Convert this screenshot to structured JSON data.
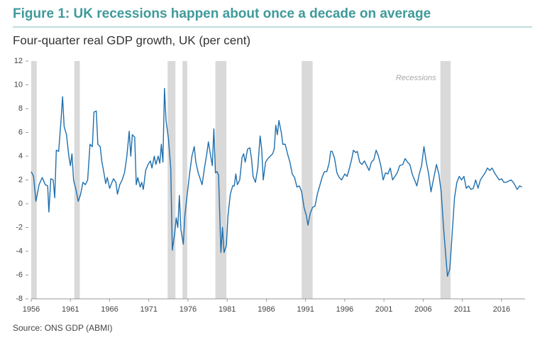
{
  "chart_data": {
    "type": "line",
    "title": "Figure 1: UK recessions happen about once a decade on average",
    "subtitle": "Four-quarter real GDP growth, UK (per cent)",
    "source": "Source: ONS GDP (ABMI)",
    "recession_label": "Recessions",
    "recessions": [
      [
        1956.0,
        1956.7
      ],
      [
        1961.5,
        1962.2
      ],
      [
        1973.4,
        1974.4
      ],
      [
        1975.3,
        1975.9
      ],
      [
        1979.5,
        1980.9
      ],
      [
        1990.5,
        1991.9
      ],
      [
        2008.2,
        2009.5
      ]
    ],
    "recession_color": "#d9d9d9",
    "xlim": [
      1956,
      2019
    ],
    "ylim": [
      -8,
      12
    ],
    "xticks": [
      1956,
      1961,
      1966,
      1971,
      1976,
      1981,
      1986,
      1991,
      1996,
      2001,
      2006,
      2011,
      2016
    ],
    "yticks": [
      -8,
      -6,
      -4,
      -2,
      0,
      2,
      4,
      6,
      8,
      10,
      12
    ],
    "color": "#1f6fae",
    "x": [
      1956.0,
      1956.3,
      1956.6,
      1957.0,
      1957.4,
      1957.8,
      1958.1,
      1958.25,
      1958.5,
      1958.8,
      1959.0,
      1959.2,
      1959.5,
      1959.8,
      1960.0,
      1960.2,
      1960.5,
      1960.8,
      1961.0,
      1961.2,
      1961.4,
      1961.7,
      1962.0,
      1962.3,
      1962.6,
      1962.9,
      1963.2,
      1963.5,
      1963.8,
      1964.0,
      1964.3,
      1964.5,
      1964.8,
      1965.0,
      1965.3,
      1965.5,
      1965.7,
      1966.0,
      1966.3,
      1966.5,
      1966.8,
      1967.0,
      1967.3,
      1967.6,
      1967.9,
      1968.2,
      1968.5,
      1968.7,
      1968.9,
      1969.2,
      1969.4,
      1969.6,
      1969.9,
      1970.1,
      1970.3,
      1970.6,
      1970.9,
      1971.2,
      1971.4,
      1971.7,
      1971.9,
      1972.2,
      1972.4,
      1972.6,
      1972.8,
      1973.0,
      1973.2,
      1973.5,
      1973.8,
      1974.0,
      1974.3,
      1974.5,
      1974.7,
      1974.9,
      1975.1,
      1975.4,
      1975.6,
      1975.9,
      1976.2,
      1976.5,
      1976.8,
      1977.0,
      1977.3,
      1977.6,
      1977.8,
      1978.1,
      1978.4,
      1978.6,
      1978.9,
      1979.1,
      1979.3,
      1979.5,
      1979.7,
      1979.9,
      1980.1,
      1980.2,
      1980.4,
      1980.6,
      1980.9,
      1981.1,
      1981.4,
      1981.7,
      1981.9,
      1982.1,
      1982.3,
      1982.6,
      1982.9,
      1983.1,
      1983.3,
      1983.6,
      1983.9,
      1984.1,
      1984.3,
      1984.6,
      1984.9,
      1985.2,
      1985.4,
      1985.6,
      1985.9,
      1986.2,
      1986.5,
      1986.8,
      1987.0,
      1987.2,
      1987.4,
      1987.6,
      1987.9,
      1988.1,
      1988.4,
      1988.7,
      1989.0,
      1989.3,
      1989.6,
      1989.9,
      1990.2,
      1990.5,
      1990.8,
      1991.1,
      1991.3,
      1991.6,
      1991.9,
      1992.2,
      1992.5,
      1992.8,
      1993.1,
      1993.4,
      1993.7,
      1994.0,
      1994.2,
      1994.4,
      1994.7,
      1995.0,
      1995.3,
      1995.6,
      1996.0,
      1996.3,
      1996.6,
      1996.9,
      1997.1,
      1997.4,
      1997.6,
      1997.9,
      1998.2,
      1998.5,
      1998.8,
      1999.1,
      1999.4,
      1999.7,
      2000.0,
      2000.3,
      2000.6,
      2000.9,
      2001.2,
      2001.5,
      2001.8,
      2002.1,
      2002.4,
      2002.7,
      2003.0,
      2003.4,
      2003.7,
      2004.0,
      2004.3,
      2004.6,
      2004.9,
      2005.2,
      2005.5,
      2005.8,
      2006.1,
      2006.4,
      2006.7,
      2007.0,
      2007.3,
      2007.7,
      2008.0,
      2008.3,
      2008.6,
      2008.9,
      2009.1,
      2009.4,
      2009.7,
      2010.0,
      2010.3,
      2010.6,
      2010.9,
      2011.2,
      2011.5,
      2011.8,
      2012.1,
      2012.4,
      2012.7,
      2013.0,
      2013.3,
      2013.6,
      2013.9,
      2014.2,
      2014.5,
      2014.8,
      2015.1,
      2015.4,
      2015.7,
      2016.0,
      2016.3,
      2016.6,
      2016.9,
      2017.2,
      2017.5,
      2018.0,
      2018.3,
      2018.6
    ],
    "values": [
      2.7,
      2.3,
      0.2,
      1.6,
      2.2,
      1.6,
      1.5,
      -0.7,
      2.1,
      2.0,
      0.5,
      4.5,
      4.4,
      7.0,
      9.0,
      6.5,
      5.8,
      4.0,
      3.2,
      4.2,
      2.0,
      1.2,
      0.2,
      0.8,
      1.8,
      1.6,
      2.0,
      5.0,
      4.8,
      7.7,
      7.8,
      5.0,
      4.8,
      3.6,
      2.5,
      1.7,
      2.2,
      1.3,
      1.8,
      2.1,
      1.8,
      0.8,
      1.6,
      2.0,
      2.6,
      4.0,
      6.1,
      4.0,
      5.8,
      5.6,
      1.6,
      2.2,
      1.4,
      1.8,
      1.2,
      2.8,
      3.3,
      3.6,
      3.0,
      4.0,
      3.3,
      4.0,
      3.4,
      5.0,
      3.5,
      9.7,
      7.0,
      5.5,
      3.0,
      -3.9,
      -2.5,
      -1.2,
      -2.0,
      0.7,
      -2.2,
      -3.4,
      -1.0,
      0.8,
      2.5,
      4.0,
      4.8,
      3.5,
      2.6,
      2.0,
      1.6,
      3.0,
      4.2,
      5.2,
      4.0,
      3.2,
      6.3,
      2.6,
      2.7,
      2.4,
      -2.0,
      -4.1,
      -2.0,
      -4.1,
      -3.5,
      -1.0,
      0.8,
      1.5,
      1.5,
      2.5,
      1.6,
      2.0,
      3.9,
      4.2,
      3.5,
      4.6,
      4.7,
      3.8,
      2.3,
      1.8,
      3.0,
      5.7,
      4.6,
      2.0,
      3.5,
      3.8,
      4.0,
      4.2,
      4.6,
      6.6,
      5.8,
      7.0,
      6.0,
      5.0,
      5.0,
      4.2,
      3.5,
      2.5,
      2.2,
      1.4,
      1.5,
      1.0,
      -0.3,
      -1.0,
      -1.8,
      -0.8,
      -0.3,
      -0.2,
      0.8,
      1.5,
      2.2,
      2.7,
      2.7,
      3.4,
      4.4,
      4.4,
      3.8,
      2.6,
      2.2,
      2.0,
      2.5,
      2.3,
      3.0,
      3.8,
      4.5,
      4.3,
      4.4,
      3.5,
      3.3,
      3.6,
      3.2,
      2.8,
      3.5,
      3.7,
      4.5,
      4.0,
      3.2,
      2.0,
      2.6,
      2.5,
      3.0,
      2.0,
      2.3,
      2.6,
      3.2,
      3.3,
      3.8,
      3.5,
      3.3,
      2.5,
      2.0,
      1.5,
      2.5,
      3.2,
      4.8,
      3.5,
      2.5,
      1.0,
      2.0,
      3.3,
      2.5,
      1.0,
      -2.0,
      -4.5,
      -6.1,
      -5.5,
      -2.5,
      0.5,
      1.8,
      2.3,
      2.0,
      2.3,
      1.3,
      1.5,
      1.2,
      1.3,
      2.0,
      1.3,
      2.0,
      2.3,
      2.6,
      3.0,
      2.8,
      3.0,
      2.6,
      2.3,
      2.0,
      2.1,
      1.8,
      1.8,
      1.9,
      2.0,
      1.8,
      1.2,
      1.5,
      1.4
    ]
  }
}
